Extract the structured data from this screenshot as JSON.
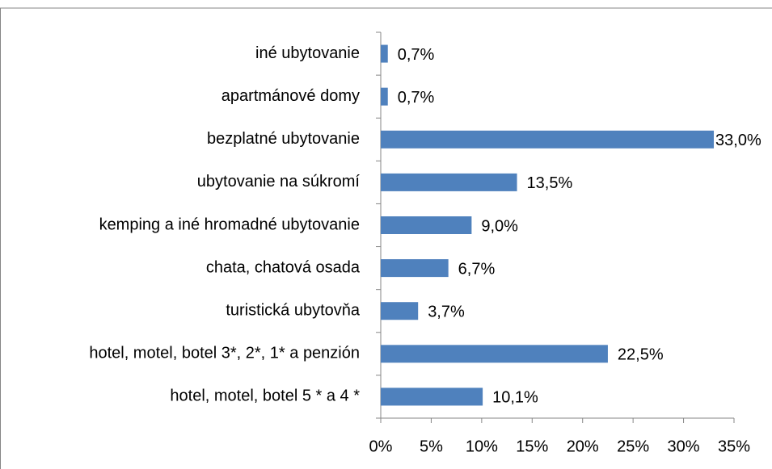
{
  "chart_data": {
    "type": "bar",
    "orientation": "horizontal",
    "categories": [
      "iné ubytovanie",
      "apartmánové domy",
      "bezplatné ubytovanie",
      "ubytovanie na súkromí",
      "kemping a iné hromadné ubytovanie",
      "chata, chatová osada",
      "turistická ubytovňa",
      "hotel, motel, botel  3*, 2*, 1* a penzión",
      "hotel, motel, botel  5 *  a  4 *"
    ],
    "values": [
      0.7,
      0.7,
      33.0,
      13.5,
      9.0,
      6.7,
      3.7,
      22.5,
      10.1
    ],
    "value_labels": [
      "0,7%",
      "0,7%",
      "33,0%",
      "13,5%",
      "9,0%",
      "6,7%",
      "3,7%",
      "22,5%",
      "10,1%"
    ],
    "color": "#4f81bd",
    "xlim": [
      0,
      35
    ],
    "xticks": [
      {
        "value": 0,
        "label": "0%"
      },
      {
        "value": 5,
        "label": "5%"
      },
      {
        "value": 10,
        "label": "10%"
      },
      {
        "value": 15,
        "label": "15%"
      },
      {
        "value": 20,
        "label": "20%"
      },
      {
        "value": 25,
        "label": "25%"
      },
      {
        "value": 30,
        "label": "30%"
      },
      {
        "value": 35,
        "label": "35%"
      }
    ],
    "grid": false
  }
}
